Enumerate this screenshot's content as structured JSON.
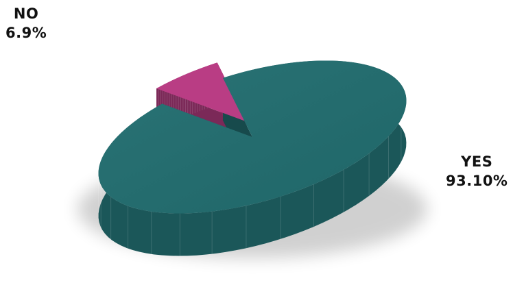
{
  "chart_data": {
    "type": "pie",
    "style": "3d-exploded",
    "slices": [
      {
        "label": "NO",
        "value_label": "6.9%",
        "value": 6.9,
        "color": "#b03a7e"
      },
      {
        "label": "YES",
        "value_label": "93.10%",
        "value": 93.1,
        "color": "#216a6c"
      }
    ],
    "title": ""
  }
}
